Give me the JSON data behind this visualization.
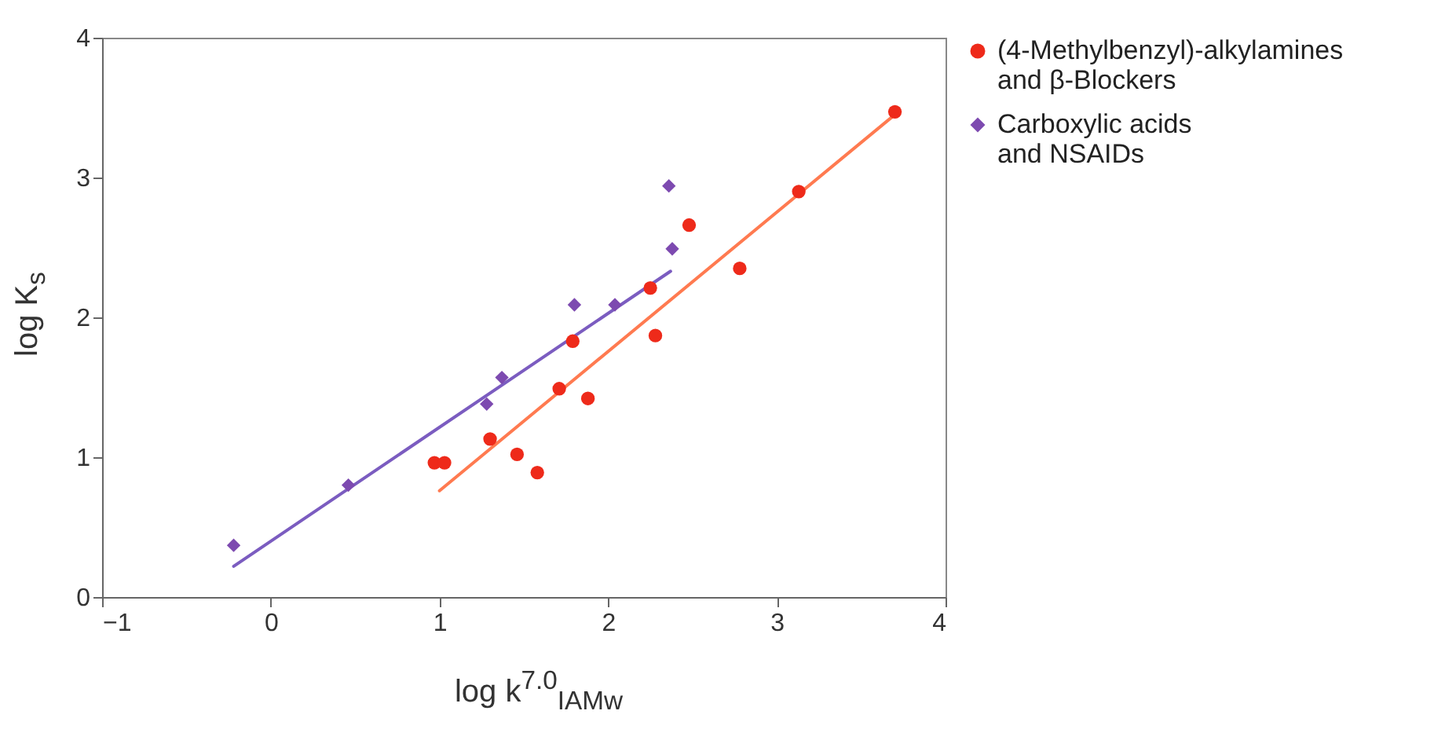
{
  "chart_data": {
    "type": "scatter",
    "xlabel": "log k$^{7.0}$$_{IAMw}$",
    "ylabel": "log K$_{s}$",
    "xlim": [
      -1,
      4
    ],
    "ylim": [
      0,
      4
    ],
    "xticks": [
      -1,
      0,
      1,
      2,
      3,
      4
    ],
    "yticks": [
      0,
      1,
      2,
      3,
      4
    ],
    "grid": false,
    "legend": "top right",
    "series": [
      {
        "name": "(4-Methylbenzyl)-alkylamines and β-Blockers",
        "marker": "circle",
        "color": "#ee2a1a",
        "x": [
          0.97,
          1.03,
          1.3,
          1.46,
          1.58,
          1.71,
          1.79,
          1.88,
          2.25,
          2.28,
          2.48,
          2.78,
          3.13,
          3.7
        ],
        "values": [
          0.96,
          0.96,
          1.13,
          1.02,
          0.89,
          1.49,
          1.83,
          1.42,
          2.21,
          1.87,
          2.66,
          2.35,
          2.9,
          3.47
        ]
      },
      {
        "name": "Carboxylic acids and NSAIDs",
        "marker": "diamond",
        "color": "#7d4ab0",
        "x": [
          -0.22,
          0.46,
          1.28,
          1.37,
          1.8,
          2.04,
          2.36,
          2.38
        ],
        "values": [
          0.37,
          0.8,
          1.38,
          1.57,
          2.09,
          2.09,
          2.94,
          2.49
        ]
      },
      {
        "type": "line",
        "line_style": "solid",
        "color": "#ff7a50",
        "x": [
          1.0,
          3.7
        ],
        "values": [
          0.76,
          3.45
        ]
      },
      {
        "type": "line",
        "line_style": "solid",
        "color": "#7b5cc0",
        "x": [
          -0.22,
          2.37
        ],
        "values": [
          0.22,
          2.33
        ]
      }
    ]
  }
}
